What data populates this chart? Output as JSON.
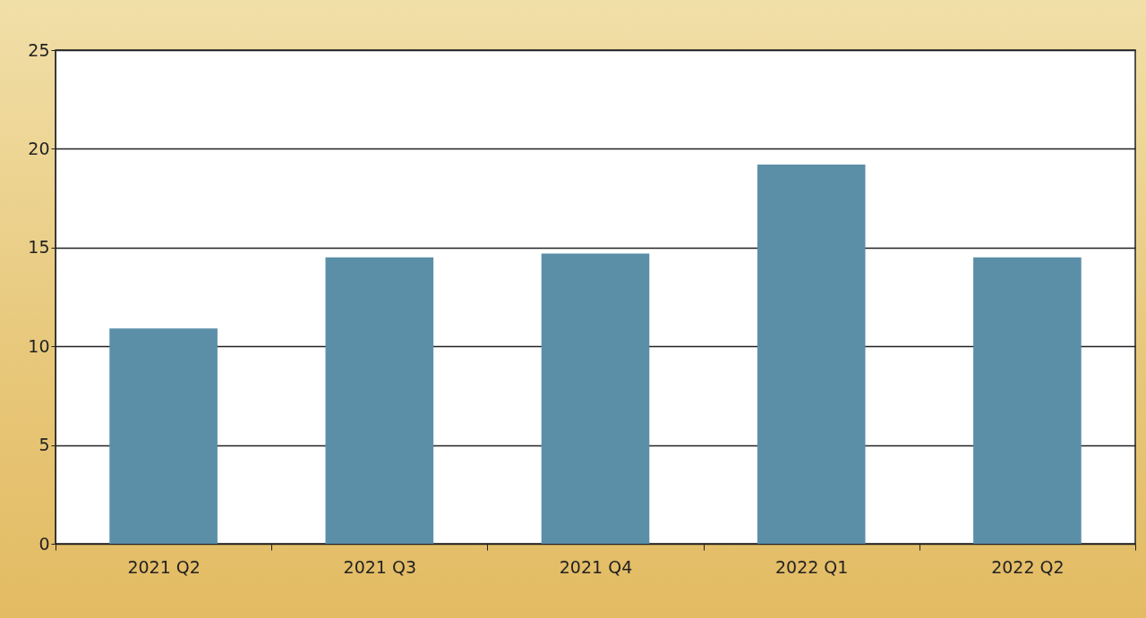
{
  "chart_data": {
    "type": "bar",
    "categories": [
      "2021 Q2",
      "2021 Q3",
      "2021 Q4",
      "2022 Q1",
      "2022 Q2"
    ],
    "values": [
      10.9,
      14.5,
      14.7,
      19.2,
      14.5
    ],
    "color": "#5b8fa8",
    "ylim": [
      0,
      25
    ],
    "yticks": [
      0,
      5,
      10,
      15,
      20,
      25
    ],
    "grid": "y"
  }
}
